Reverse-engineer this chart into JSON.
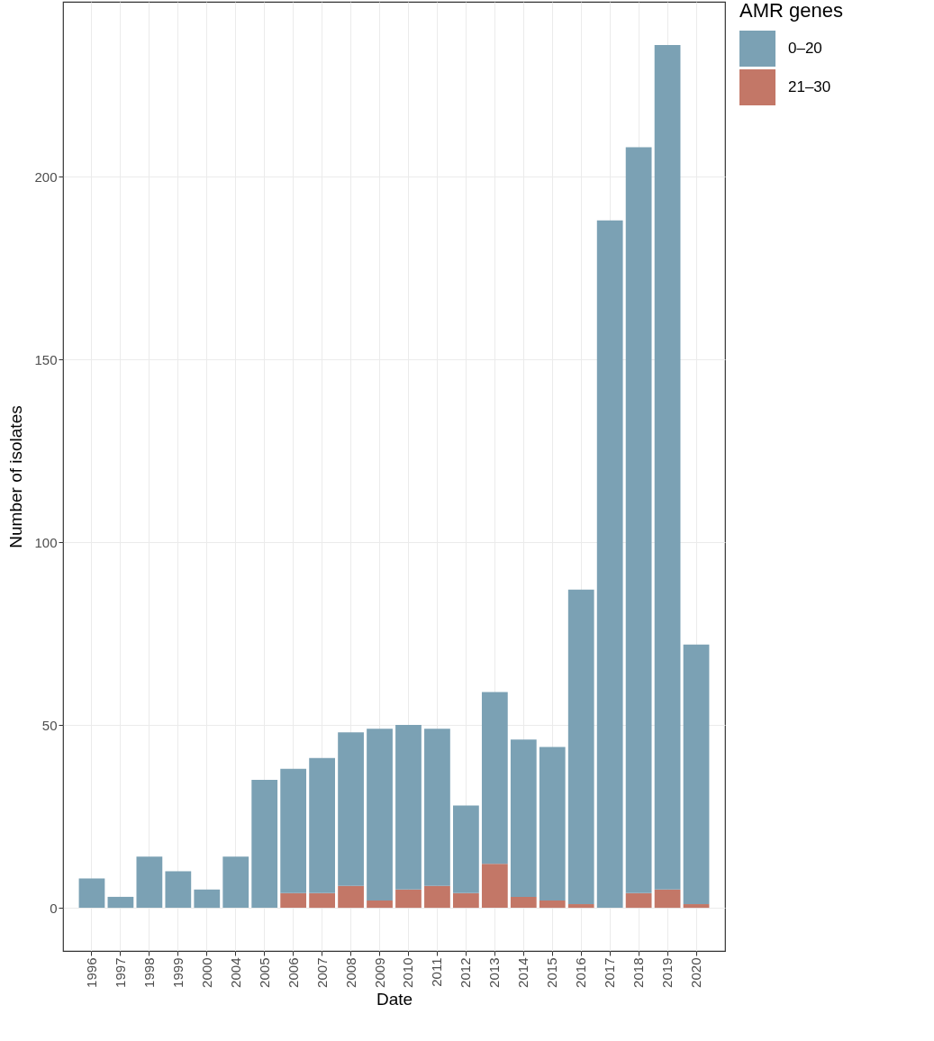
{
  "chart_data": {
    "type": "bar",
    "stacked": true,
    "xlabel": "Date",
    "ylabel": "Number of isolates",
    "legend_title": "AMR genes",
    "legend": "right",
    "grid": true,
    "categories": [
      "1996",
      "1997",
      "1998",
      "1999",
      "2000",
      "2004",
      "2005",
      "2006",
      "2007",
      "2008",
      "2009",
      "2010",
      "2011",
      "2012",
      "2013",
      "2014",
      "2015",
      "2016",
      "2017",
      "2018",
      "2019",
      "2020"
    ],
    "ylim": [
      -11.8,
      247.8
    ],
    "yticks": [
      0,
      50,
      100,
      150,
      200
    ],
    "series": [
      {
        "name": "21–30",
        "color": "#c37767",
        "values": [
          0,
          0,
          0,
          0,
          0,
          0,
          0,
          4,
          4,
          6,
          2,
          5,
          6,
          4,
          12,
          3,
          2,
          1,
          0,
          4,
          5,
          1
        ]
      },
      {
        "name": "0–20",
        "color": "#7ba1b4",
        "values": [
          8,
          3,
          14,
          10,
          5,
          14,
          35,
          34,
          37,
          42,
          47,
          45,
          43,
          24,
          47,
          43,
          42,
          86,
          188,
          204,
          231,
          71
        ]
      }
    ]
  }
}
